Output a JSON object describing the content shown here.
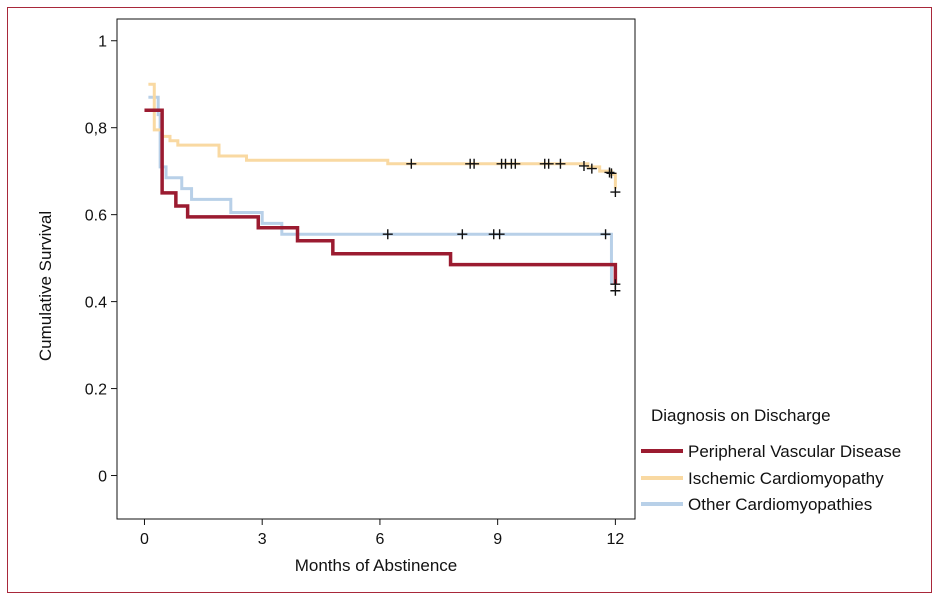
{
  "chart_data": {
    "type": "line",
    "xlabel": "Months of Abstinence",
    "ylabel": "Cumulative Survival",
    "xlim": [
      -0.7,
      12.5
    ],
    "ylim": [
      -0.1,
      1.05
    ],
    "x_ticks": [
      {
        "value": 0,
        "label": "0"
      },
      {
        "value": 3,
        "label": "3"
      },
      {
        "value": 6,
        "label": "6"
      },
      {
        "value": 9,
        "label": "9"
      },
      {
        "value": 12,
        "label": "12"
      }
    ],
    "y_ticks": [
      {
        "value": 1.0,
        "label": "1"
      },
      {
        "value": 0.8,
        "label": "0,8"
      },
      {
        "value": 0.6,
        "label": "0.6"
      },
      {
        "value": 0.4,
        "label": "0.4"
      },
      {
        "value": 0.2,
        "label": "0.2"
      },
      {
        "value": 0.0,
        "label": "0"
      }
    ],
    "legend": {
      "title": "Diagnosis on Discharge",
      "placement": "right"
    },
    "series": [
      {
        "name": "Peripheral Vascular Disease",
        "color": "#9b1b30",
        "steps": [
          [
            0,
            0.84
          ],
          [
            0.45,
            0.65
          ],
          [
            0.8,
            0.62
          ],
          [
            1.1,
            0.595
          ],
          [
            2.9,
            0.57
          ],
          [
            3.9,
            0.54
          ],
          [
            4.8,
            0.51
          ],
          [
            7.8,
            0.485
          ],
          [
            12.0,
            0.44
          ]
        ],
        "censored": [
          [
            12.0,
            0.44
          ],
          [
            12.0,
            0.425
          ]
        ]
      },
      {
        "name": "Ischemic Cardiomyopathy",
        "color": "#f9d9a2",
        "steps": [
          [
            0.1,
            0.9
          ],
          [
            0.25,
            0.795
          ],
          [
            0.45,
            0.78
          ],
          [
            0.65,
            0.77
          ],
          [
            0.85,
            0.76
          ],
          [
            1.9,
            0.735
          ],
          [
            2.6,
            0.725
          ],
          [
            6.2,
            0.717
          ],
          [
            11.3,
            0.71
          ],
          [
            11.6,
            0.7
          ],
          [
            11.9,
            0.693
          ],
          [
            12.0,
            0.66
          ]
        ],
        "censored": [
          [
            6.8,
            0.717
          ],
          [
            8.3,
            0.717
          ],
          [
            8.4,
            0.717
          ],
          [
            9.1,
            0.717
          ],
          [
            9.2,
            0.717
          ],
          [
            9.35,
            0.717
          ],
          [
            9.45,
            0.717
          ],
          [
            10.2,
            0.717
          ],
          [
            10.3,
            0.717
          ],
          [
            10.6,
            0.717
          ],
          [
            11.2,
            0.712
          ],
          [
            11.4,
            0.706
          ],
          [
            11.85,
            0.697
          ],
          [
            11.9,
            0.695
          ],
          [
            12.0,
            0.652
          ]
        ]
      },
      {
        "name": "Other Cardiomyopathies",
        "color": "#b8d0e8",
        "steps": [
          [
            0.1,
            0.87
          ],
          [
            0.35,
            0.83
          ],
          [
            0.4,
            0.71
          ],
          [
            0.55,
            0.685
          ],
          [
            0.95,
            0.66
          ],
          [
            1.2,
            0.635
          ],
          [
            2.2,
            0.605
          ],
          [
            3.0,
            0.58
          ],
          [
            3.5,
            0.555
          ],
          [
            11.9,
            0.555
          ],
          [
            11.9,
            0.44
          ]
        ],
        "censored": [
          [
            6.2,
            0.555
          ],
          [
            8.1,
            0.555
          ],
          [
            8.9,
            0.555
          ],
          [
            9.05,
            0.555
          ],
          [
            11.75,
            0.555
          ]
        ]
      }
    ]
  }
}
